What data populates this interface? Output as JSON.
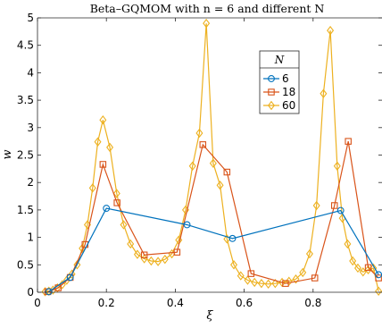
{
  "chart_data": {
    "type": "line",
    "title": "Beta–GQMOM with n = 6 and different N",
    "xlabel": "ξ",
    "ylabel": "w",
    "xlim": [
      0,
      1
    ],
    "ylim": [
      0,
      5
    ],
    "xticks": [
      "0",
      "0.2",
      "0.4",
      "0.6",
      "0.8"
    ],
    "yticks": [
      "0",
      "0.5",
      "1",
      "1.5",
      "2",
      "2.5",
      "3",
      "3.5",
      "4",
      "4.5",
      "5"
    ],
    "grid": false,
    "legend": {
      "title": "N",
      "placement": "top-right-inset"
    },
    "series": [
      {
        "name": "6",
        "color": "#0072BD",
        "marker": "circle",
        "x": [
          0.033,
          0.095,
          0.2,
          0.434,
          0.566,
          0.88,
          0.99
        ],
        "y": [
          0.01,
          0.27,
          1.53,
          1.23,
          0.98,
          1.49,
          0.32
        ]
      },
      {
        "name": "18",
        "color": "#D95319",
        "marker": "square",
        "x": [
          0.03,
          0.06,
          0.095,
          0.138,
          0.19,
          0.231,
          0.31,
          0.405,
          0.48,
          0.55,
          0.62,
          0.72,
          0.805,
          0.862,
          0.902,
          0.96,
          0.99
        ],
        "y": [
          0.01,
          0.08,
          0.27,
          0.87,
          2.33,
          1.63,
          0.68,
          0.73,
          2.69,
          2.19,
          0.34,
          0.16,
          0.26,
          1.58,
          2.75,
          0.45,
          0.26
        ]
      },
      {
        "name": "60",
        "color": "#EDB120",
        "marker": "diamond",
        "x": [
          0.022,
          0.033,
          0.045,
          0.058,
          0.072,
          0.085,
          0.1,
          0.115,
          0.13,
          0.145,
          0.16,
          0.175,
          0.19,
          0.21,
          0.23,
          0.25,
          0.27,
          0.29,
          0.31,
          0.33,
          0.35,
          0.37,
          0.39,
          0.41,
          0.43,
          0.45,
          0.47,
          0.49,
          0.51,
          0.53,
          0.55,
          0.57,
          0.59,
          0.61,
          0.63,
          0.65,
          0.67,
          0.69,
          0.71,
          0.73,
          0.75,
          0.77,
          0.79,
          0.81,
          0.83,
          0.85,
          0.87,
          0.885,
          0.9,
          0.915,
          0.93,
          0.945,
          0.96,
          0.975,
          0.99
        ],
        "y": [
          0.01,
          0.02,
          0.04,
          0.08,
          0.14,
          0.22,
          0.33,
          0.5,
          0.8,
          1.23,
          1.9,
          2.74,
          3.14,
          2.64,
          1.8,
          1.23,
          0.88,
          0.69,
          0.61,
          0.57,
          0.56,
          0.6,
          0.7,
          0.95,
          1.5,
          2.3,
          2.9,
          4.9,
          2.35,
          1.95,
          0.97,
          0.5,
          0.3,
          0.22,
          0.18,
          0.16,
          0.15,
          0.16,
          0.18,
          0.2,
          0.24,
          0.36,
          0.7,
          1.58,
          3.62,
          4.77,
          2.3,
          1.35,
          0.88,
          0.57,
          0.44,
          0.37,
          0.41,
          0.44,
          0.02
        ]
      }
    ]
  }
}
